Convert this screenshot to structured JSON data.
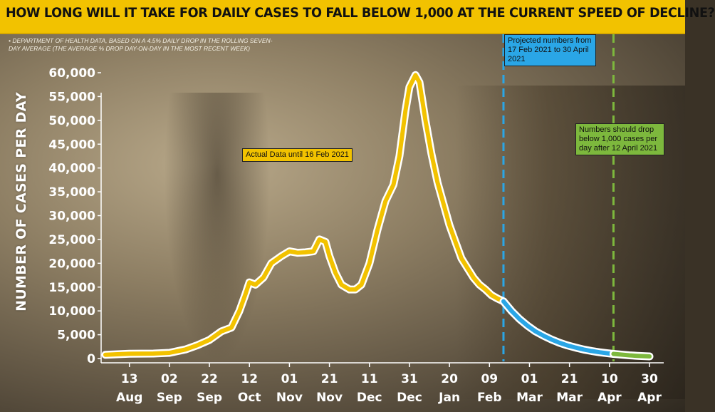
{
  "title": "HOW LONG WILL IT TAKE FOR DAILY CASES TO FALL BELOW 1,000 AT THE CURRENT SPEED OF DECLINE?",
  "source_note": "• DEPARTMENT OF HEALTH DATA, BASED ON A 4.5% DAILY DROP IN THE ROLLING SEVEN-DAY AVERAGE (THE AVERAGE % DROP DAY-ON-DAY IN THE MOST RECENT WEEK)",
  "colors": {
    "title_band": "#f2c200",
    "actual_line": "#f2c200",
    "projected_line": "#2aa6e6",
    "threshold_line": "#7db83d",
    "line_outline": "#ffffff"
  },
  "annotations": {
    "actual": "Actual Data until 16 Feb 2021",
    "projected": "Projected numbers from 17 Feb 2021 to 30 April 2021",
    "threshold": "Numbers should drop below 1,000 cases per day after 12 April 2021"
  },
  "chart_data": {
    "type": "line",
    "title": "HOW LONG WILL IT TAKE FOR DAILY CASES TO FALL BELOW 1,000 AT THE CURRENT SPEED OF DECLINE?",
    "ylabel": "NUMBER OF CASES PER DAY",
    "xlabel": "",
    "ylim": [
      0,
      60000
    ],
    "yticks": [
      0,
      5000,
      10000,
      15000,
      20000,
      25000,
      30000,
      35000,
      40000,
      45000,
      50000,
      55000,
      60000
    ],
    "ytick_labels": [
      "0",
      "5,000",
      "10,000",
      "15,000",
      "20,000",
      "25,000",
      "30,000",
      "35,000",
      "40,000",
      "45,000",
      "50,000",
      "55,000",
      "60,000"
    ],
    "xlim": [
      "2020-08-01",
      "2021-04-30"
    ],
    "xticks": [
      {
        "date": "2020-08-13",
        "day": "13",
        "month": "Aug"
      },
      {
        "date": "2020-09-02",
        "day": "02",
        "month": "Sep"
      },
      {
        "date": "2020-09-22",
        "day": "22",
        "month": "Sep"
      },
      {
        "date": "2020-10-12",
        "day": "12",
        "month": "Oct"
      },
      {
        "date": "2020-11-01",
        "day": "01",
        "month": "Nov"
      },
      {
        "date": "2020-11-21",
        "day": "21",
        "month": "Nov"
      },
      {
        "date": "2020-12-11",
        "day": "11",
        "month": "Dec"
      },
      {
        "date": "2020-12-31",
        "day": "31",
        "month": "Dec"
      },
      {
        "date": "2021-01-20",
        "day": "20",
        "month": "Jan"
      },
      {
        "date": "2021-02-09",
        "day": "09",
        "month": "Feb"
      },
      {
        "date": "2021-03-01",
        "day": "01",
        "month": "Mar"
      },
      {
        "date": "2021-03-21",
        "day": "21",
        "month": "Mar"
      },
      {
        "date": "2021-04-10",
        "day": "10",
        "month": "Apr"
      },
      {
        "date": "2021-04-30",
        "day": "30",
        "month": "Apr"
      }
    ],
    "grid": false,
    "legend": "none",
    "series": [
      {
        "color": "#f2c200",
        "x": [
          "2020-08-01",
          "2020-08-13",
          "2020-08-25",
          "2020-09-02",
          "2020-09-10",
          "2020-09-16",
          "2020-09-22",
          "2020-09-28",
          "2020-10-03",
          "2020-10-07",
          "2020-10-10",
          "2020-10-12",
          "2020-10-15",
          "2020-10-19",
          "2020-10-23",
          "2020-10-28",
          "2020-11-01",
          "2020-11-05",
          "2020-11-09",
          "2020-11-13",
          "2020-11-16",
          "2020-11-19",
          "2020-11-21",
          "2020-11-24",
          "2020-11-27",
          "2020-12-01",
          "2020-12-04",
          "2020-12-07",
          "2020-12-11",
          "2020-12-15",
          "2020-12-19",
          "2020-12-23",
          "2020-12-26",
          "2020-12-29",
          "2020-12-31",
          "2021-01-03",
          "2021-01-05",
          "2021-01-08",
          "2021-01-11",
          "2021-01-14",
          "2021-01-17",
          "2021-01-20",
          "2021-01-23",
          "2021-01-26",
          "2021-01-29",
          "2021-02-01",
          "2021-02-04",
          "2021-02-07",
          "2021-02-10",
          "2021-02-13",
          "2021-02-16"
        ],
        "y": [
          800,
          1000,
          1050,
          1200,
          1900,
          2800,
          3900,
          5700,
          6500,
          10000,
          13500,
          16000,
          15500,
          17000,
          20000,
          21500,
          22500,
          22200,
          22300,
          22500,
          25000,
          24500,
          21500,
          18000,
          15500,
          14500,
          14500,
          15500,
          20000,
          27000,
          33000,
          36500,
          42500,
          52000,
          57000,
          59500,
          58000,
          50000,
          43000,
          37000,
          32500,
          28000,
          24500,
          21000,
          19000,
          17000,
          15500,
          14500,
          13300,
          12600,
          12000
        ]
      },
      {
        "color": "#2aa6e6",
        "x": [
          "2021-02-16",
          "2021-02-20",
          "2021-02-24",
          "2021-02-28",
          "2021-03-04",
          "2021-03-08",
          "2021-03-12",
          "2021-03-16",
          "2021-03-20",
          "2021-03-24",
          "2021-03-28",
          "2021-04-01",
          "2021-04-05",
          "2021-04-09",
          "2021-04-12"
        ],
        "y": [
          12000,
          10000,
          8300,
          6900,
          5700,
          4800,
          4000,
          3300,
          2750,
          2300,
          1900,
          1580,
          1320,
          1100,
          980
        ]
      },
      {
        "color": "#7db83d",
        "x": [
          "2021-04-12",
          "2021-04-16",
          "2021-04-20",
          "2021-04-24",
          "2021-04-30"
        ],
        "y": [
          980,
          820,
          680,
          570,
          450
        ]
      }
    ],
    "vlines": [
      {
        "date": "2021-02-16",
        "color": "#2aa6e6",
        "style": "dashed"
      },
      {
        "date": "2021-04-12",
        "color": "#7db83d",
        "style": "dashed"
      }
    ]
  }
}
